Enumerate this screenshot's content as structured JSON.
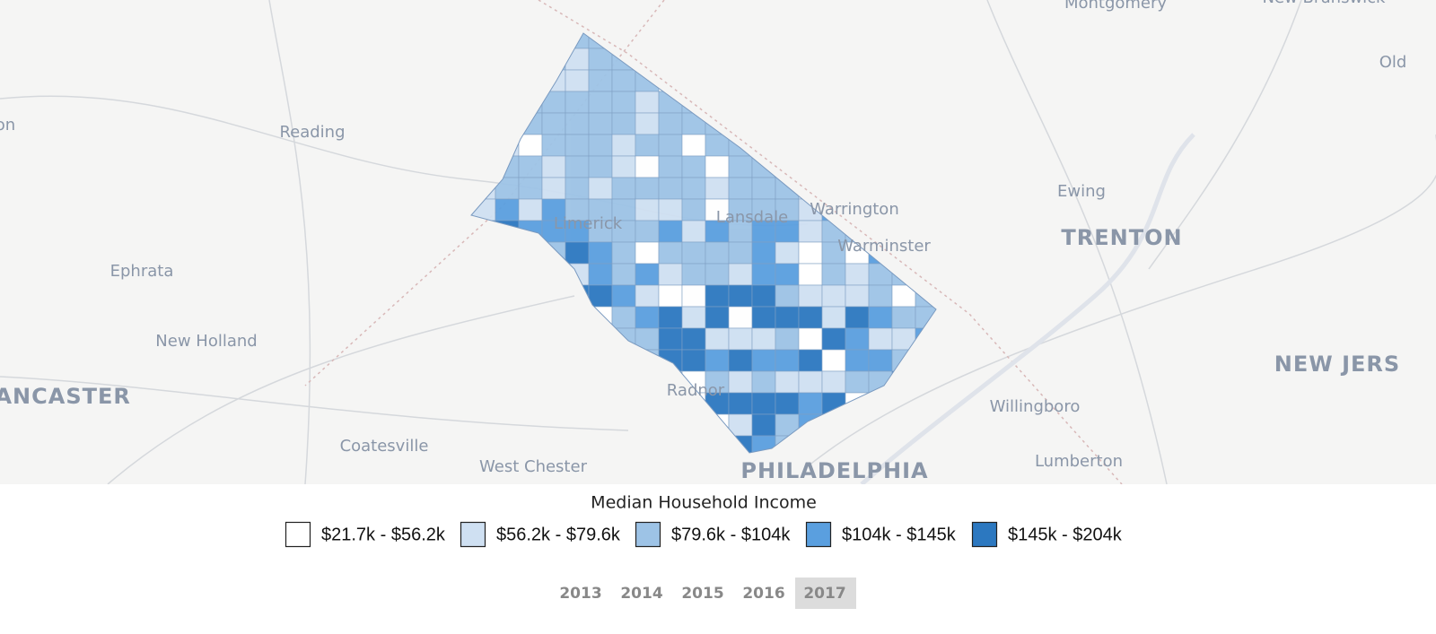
{
  "map": {
    "place_labels": [
      "Montgomery",
      "New Brunswick",
      "Old",
      "on",
      "Reading",
      "Ewing",
      "Warrington",
      "TRENTON",
      "Limerick",
      "Lansdale",
      "Warminster",
      "Ephrata",
      "New Holland",
      "NEW JERS",
      "LANCASTER",
      "Radnor",
      "Willingboro",
      "Coatesville",
      "Lumberton",
      "West Chester",
      "PHILADELPHIA"
    ]
  },
  "legend": {
    "title": "Median Household Income",
    "items": [
      {
        "label": "$21.7k - $56.2k",
        "color": "#ffffff"
      },
      {
        "label": "$56.2k - $79.6k",
        "color": "#cfe0f2"
      },
      {
        "label": "$79.6k - $104k",
        "color": "#9dc3e6"
      },
      {
        "label": "$104k - $145k",
        "color": "#5a9fdf"
      },
      {
        "label": "$145k - $204k",
        "color": "#2c78c0"
      }
    ]
  },
  "years": {
    "options": [
      "2013",
      "2014",
      "2015",
      "2016",
      "2017"
    ],
    "selected": 4
  }
}
